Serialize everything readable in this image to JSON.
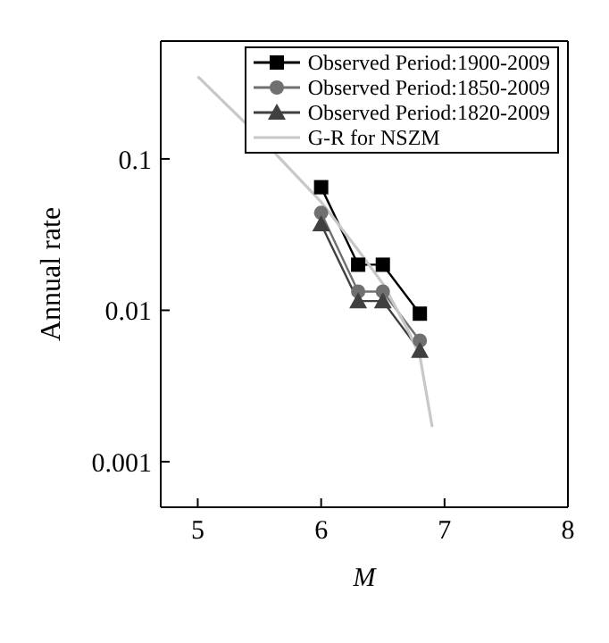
{
  "chart_data": {
    "type": "line",
    "xlabel": "M",
    "ylabel": "Annual rate",
    "log": "y",
    "xlim": [
      4.7,
      8
    ],
    "xticks": [
      5,
      6,
      7,
      8
    ],
    "ylim": [
      0.0005,
      0.6
    ],
    "yticks": [
      0.001,
      0.01,
      0.1
    ],
    "legend": "top right",
    "series": [
      {
        "name": "Observed Period:1900-2009",
        "color": "#000000",
        "marker": "square",
        "x": [
          6.0,
          6.3,
          6.5,
          6.8
        ],
        "values": [
          0.065,
          0.02,
          0.02,
          0.0095
        ]
      },
      {
        "name": "Observed Period:1850-2009",
        "color": "#707070",
        "marker": "circle",
        "x": [
          6.0,
          6.3,
          6.5,
          6.8
        ],
        "values": [
          0.044,
          0.0133,
          0.0133,
          0.0063
        ]
      },
      {
        "name": "Observed Period:1820-2009",
        "color": "#404040",
        "marker": "triangle",
        "x": [
          6.0,
          6.3,
          6.5,
          6.8
        ],
        "values": [
          0.037,
          0.0115,
          0.0115,
          0.0054
        ]
      },
      {
        "name": "G-R for NSZM",
        "color": "#c8c8c8",
        "marker": "none",
        "x": [
          5.0,
          5.5,
          6.0,
          6.3,
          6.5,
          6.7,
          6.8,
          6.9
        ],
        "values": [
          0.35,
          0.14,
          0.052,
          0.025,
          0.015,
          0.0075,
          0.005,
          0.0017
        ]
      }
    ]
  }
}
